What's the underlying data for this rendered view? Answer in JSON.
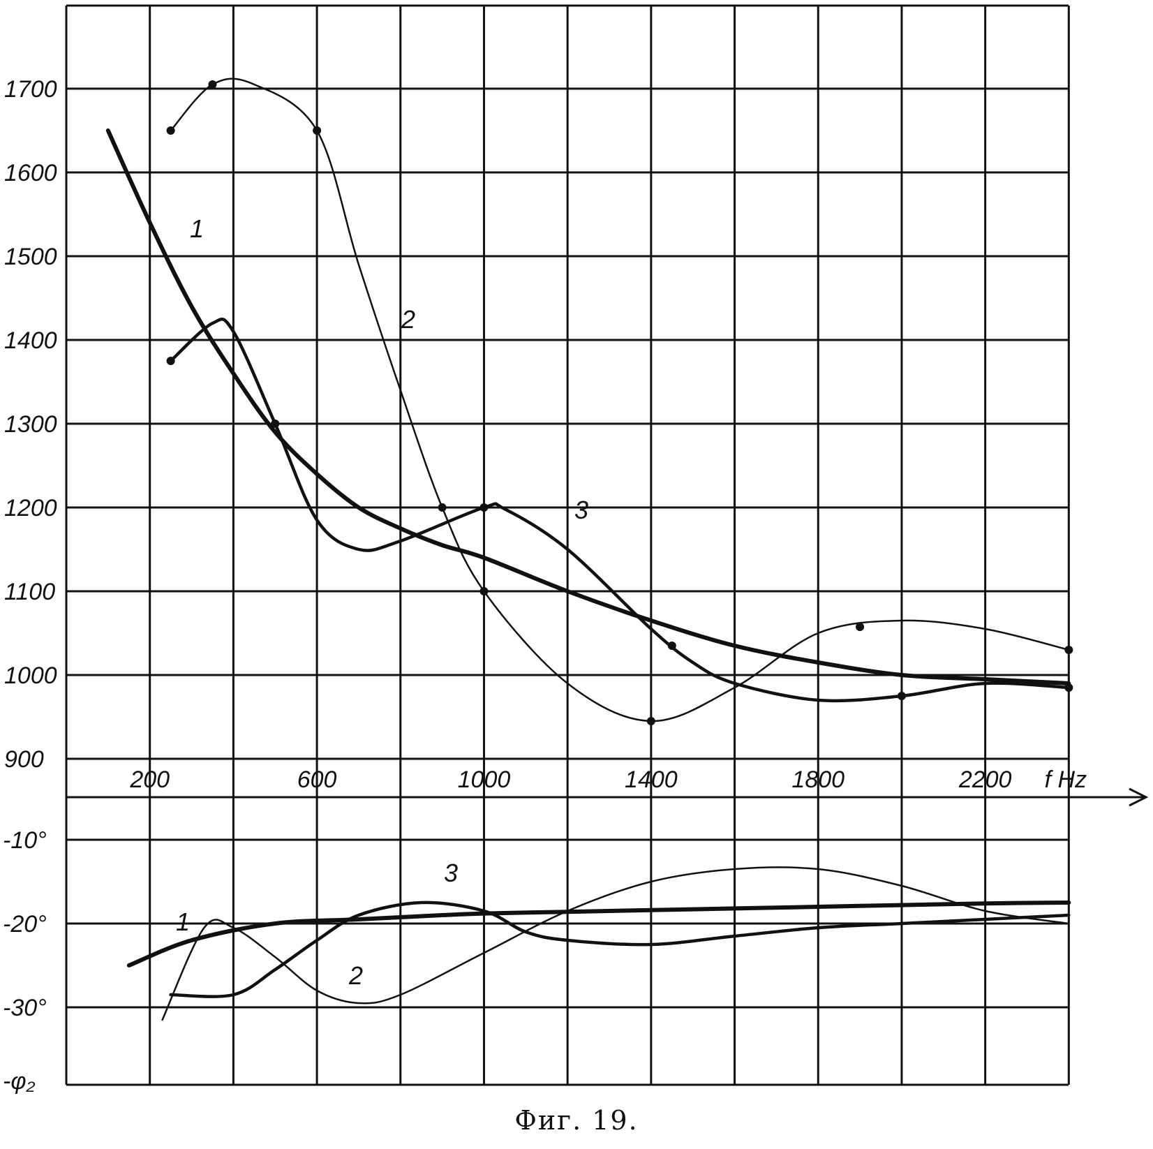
{
  "chart_data": {
    "type": "line",
    "caption": "Фиг. 19.",
    "x_unit_label": "f Hz",
    "x_tick_labels": [
      "200",
      "600",
      "1000",
      "1400",
      "1800",
      "2200"
    ],
    "xlim": [
      0,
      2400
    ],
    "grid": true,
    "top_panel": {
      "y_tick_labels": [
        "1700",
        "1600",
        "1500",
        "1400",
        "1300",
        "1200",
        "1100",
        "1000",
        "900"
      ],
      "ylim": [
        850,
        1800
      ],
      "series": [
        {
          "name": "1",
          "stroke": "heavy",
          "x": [
            100,
            200,
            300,
            400,
            500,
            600,
            700,
            800,
            900,
            1000,
            1200,
            1400,
            1600,
            1800,
            2000,
            2200,
            2400
          ],
          "y": [
            1650,
            1540,
            1440,
            1360,
            1290,
            1240,
            1200,
            1175,
            1155,
            1140,
            1100,
            1065,
            1035,
            1015,
            1000,
            995,
            990
          ],
          "markers": []
        },
        {
          "name": "2",
          "stroke": "light",
          "x": [
            250,
            350,
            450,
            600,
            700,
            800,
            900,
            1000,
            1200,
            1400,
            1600,
            1800,
            2000,
            2200,
            2400
          ],
          "y": [
            1650,
            1705,
            1705,
            1650,
            1490,
            1340,
            1200,
            1100,
            990,
            945,
            985,
            1050,
            1065,
            1055,
            1030
          ],
          "markers": [
            250,
            350,
            600,
            900,
            1000,
            1400,
            1900,
            2400
          ]
        },
        {
          "name": "3",
          "stroke": "medium",
          "x": [
            250,
            350,
            400,
            500,
            600,
            700,
            800,
            1000,
            1050,
            1200,
            1400,
            1500,
            1600,
            1800,
            2000,
            2200,
            2400
          ],
          "y": [
            1375,
            1420,
            1410,
            1300,
            1185,
            1150,
            1160,
            1200,
            1198,
            1150,
            1055,
            1015,
            990,
            970,
            975,
            990,
            985
          ],
          "markers": [
            250,
            500,
            1000,
            1450,
            2000,
            2400
          ]
        }
      ]
    },
    "bottom_panel": {
      "y_tick_labels": [
        "-10°",
        "-20°",
        "-30°",
        "-φ₂"
      ],
      "ylim": [
        -40,
        -5
      ],
      "series": [
        {
          "name": "1",
          "stroke": "heavy",
          "x": [
            150,
            300,
            500,
            700,
            900,
            1000,
            1200,
            1400,
            1600,
            1800,
            2000,
            2200,
            2400
          ],
          "y": [
            -25,
            -22,
            -20,
            -19.5,
            -19,
            -18.8,
            -18.6,
            -18.4,
            -18.2,
            -18,
            -17.8,
            -17.6,
            -17.5
          ],
          "markers": []
        },
        {
          "name": "2",
          "stroke": "light",
          "x": [
            230,
            330,
            400,
            500,
            600,
            700,
            800,
            1000,
            1200,
            1400,
            1600,
            1800,
            2000,
            2200,
            2400
          ],
          "y": [
            -31.5,
            -20.5,
            -20.5,
            -24,
            -28,
            -29.5,
            -28.5,
            -23.5,
            -18.5,
            -15,
            -13.5,
            -13.5,
            -15.5,
            -18.5,
            -20
          ],
          "markers": []
        },
        {
          "name": "3",
          "stroke": "medium",
          "x": [
            250,
            400,
            500,
            600,
            700,
            850,
            1000,
            1100,
            1200,
            1400,
            1600,
            1800,
            2000,
            2200,
            2400
          ],
          "y": [
            -28.5,
            -28.5,
            -25.5,
            -22,
            -19,
            -17.5,
            -18.5,
            -21,
            -22,
            -22.5,
            -21.5,
            -20.5,
            -20,
            -19.5,
            -19
          ],
          "markers": []
        }
      ]
    }
  }
}
